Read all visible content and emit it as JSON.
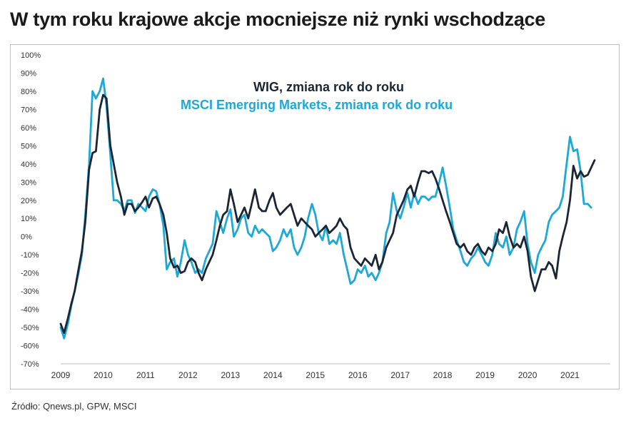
{
  "page": {
    "title": "W tym roku krajowe akcje mocniejsze niż rynki wschodzące",
    "source": "Źródło: Qnews.pl, GPW, MSCI"
  },
  "chart_data": {
    "type": "line",
    "title": "",
    "xlabel": "",
    "ylabel": "",
    "ylim": [
      -70,
      100
    ],
    "xlim": [
      2009,
      2021.95
    ],
    "grid": false,
    "legend_position": "top-center",
    "y_ticks": [
      "100%",
      "90%",
      "80%",
      "70%",
      "60%",
      "50%",
      "40%",
      "30%",
      "20%",
      "10%",
      "0%",
      "-10%",
      "-20%",
      "-30%",
      "-40%",
      "-50%",
      "-60%",
      "-70%"
    ],
    "x_ticks": [
      "2009",
      "2010",
      "2011",
      "2012",
      "2013",
      "2014",
      "2015",
      "2016",
      "2017",
      "2018",
      "2019",
      "2020",
      "2021"
    ],
    "series": [
      {
        "name": "WIG, zmiana rok do roku",
        "color": "#1c2533",
        "points": [
          [
            2009.0,
            -48
          ],
          [
            2009.08,
            -53
          ],
          [
            2009.17,
            -45
          ],
          [
            2009.25,
            -37
          ],
          [
            2009.33,
            -30
          ],
          [
            2009.42,
            -18
          ],
          [
            2009.5,
            -8
          ],
          [
            2009.58,
            8
          ],
          [
            2009.67,
            37
          ],
          [
            2009.75,
            46
          ],
          [
            2009.83,
            47
          ],
          [
            2009.92,
            70
          ],
          [
            2010.0,
            78
          ],
          [
            2010.08,
            76
          ],
          [
            2010.17,
            50
          ],
          [
            2010.25,
            40
          ],
          [
            2010.33,
            30
          ],
          [
            2010.42,
            22
          ],
          [
            2010.5,
            12
          ],
          [
            2010.58,
            18
          ],
          [
            2010.67,
            18
          ],
          [
            2010.75,
            14
          ],
          [
            2010.83,
            16
          ],
          [
            2010.92,
            19
          ],
          [
            2011.0,
            22
          ],
          [
            2011.08,
            16
          ],
          [
            2011.17,
            21
          ],
          [
            2011.25,
            22
          ],
          [
            2011.33,
            18
          ],
          [
            2011.42,
            12
          ],
          [
            2011.5,
            2
          ],
          [
            2011.58,
            -12
          ],
          [
            2011.67,
            -17
          ],
          [
            2011.75,
            -16
          ],
          [
            2011.83,
            -20
          ],
          [
            2011.92,
            -19
          ],
          [
            2012.0,
            -14
          ],
          [
            2012.08,
            -12
          ],
          [
            2012.17,
            -14
          ],
          [
            2012.25,
            -20
          ],
          [
            2012.33,
            -24
          ],
          [
            2012.42,
            -18
          ],
          [
            2012.5,
            -14
          ],
          [
            2012.58,
            -10
          ],
          [
            2012.67,
            -2
          ],
          [
            2012.75,
            6
          ],
          [
            2012.83,
            12
          ],
          [
            2012.92,
            14
          ],
          [
            2013.0,
            26
          ],
          [
            2013.08,
            18
          ],
          [
            2013.17,
            8
          ],
          [
            2013.25,
            12
          ],
          [
            2013.33,
            16
          ],
          [
            2013.42,
            10
          ],
          [
            2013.5,
            18
          ],
          [
            2013.58,
            26
          ],
          [
            2013.67,
            16
          ],
          [
            2013.75,
            14
          ],
          [
            2013.83,
            14
          ],
          [
            2013.92,
            20
          ],
          [
            2014.0,
            24
          ],
          [
            2014.08,
            16
          ],
          [
            2014.17,
            12
          ],
          [
            2014.25,
            14
          ],
          [
            2014.33,
            16
          ],
          [
            2014.42,
            18
          ],
          [
            2014.5,
            12
          ],
          [
            2014.58,
            6
          ],
          [
            2014.67,
            10
          ],
          [
            2014.75,
            8
          ],
          [
            2014.83,
            6
          ],
          [
            2014.92,
            4
          ],
          [
            2015.0,
            0
          ],
          [
            2015.08,
            2
          ],
          [
            2015.17,
            4
          ],
          [
            2015.25,
            6
          ],
          [
            2015.33,
            2
          ],
          [
            2015.42,
            4
          ],
          [
            2015.5,
            6
          ],
          [
            2015.58,
            10
          ],
          [
            2015.67,
            6
          ],
          [
            2015.75,
            4
          ],
          [
            2015.83,
            -6
          ],
          [
            2015.92,
            -12
          ],
          [
            2016.0,
            -14
          ],
          [
            2016.08,
            -16
          ],
          [
            2016.17,
            -12
          ],
          [
            2016.25,
            -14
          ],
          [
            2016.33,
            -16
          ],
          [
            2016.42,
            -10
          ],
          [
            2016.5,
            -18
          ],
          [
            2016.58,
            -14
          ],
          [
            2016.67,
            -6
          ],
          [
            2016.75,
            -2
          ],
          [
            2016.83,
            2
          ],
          [
            2016.92,
            12
          ],
          [
            2017.0,
            16
          ],
          [
            2017.08,
            20
          ],
          [
            2017.17,
            26
          ],
          [
            2017.25,
            28
          ],
          [
            2017.33,
            22
          ],
          [
            2017.42,
            30
          ],
          [
            2017.5,
            36
          ],
          [
            2017.58,
            36
          ],
          [
            2017.67,
            35
          ],
          [
            2017.75,
            36
          ],
          [
            2017.83,
            32
          ],
          [
            2017.92,
            26
          ],
          [
            2018.0,
            20
          ],
          [
            2018.08,
            14
          ],
          [
            2018.17,
            8
          ],
          [
            2018.25,
            2
          ],
          [
            2018.33,
            -4
          ],
          [
            2018.42,
            -6
          ],
          [
            2018.5,
            -4
          ],
          [
            2018.58,
            -8
          ],
          [
            2018.67,
            -10
          ],
          [
            2018.75,
            -6
          ],
          [
            2018.83,
            -4
          ],
          [
            2018.92,
            -8
          ],
          [
            2019.0,
            -10
          ],
          [
            2019.08,
            -6
          ],
          [
            2019.17,
            -8
          ],
          [
            2019.25,
            -4
          ],
          [
            2019.33,
            4
          ],
          [
            2019.42,
            2
          ],
          [
            2019.5,
            8
          ],
          [
            2019.58,
            0
          ],
          [
            2019.67,
            -6
          ],
          [
            2019.75,
            -4
          ],
          [
            2019.83,
            -6
          ],
          [
            2019.92,
            0
          ],
          [
            2020.0,
            -8
          ],
          [
            2020.08,
            -22
          ],
          [
            2020.17,
            -30
          ],
          [
            2020.25,
            -24
          ],
          [
            2020.33,
            -18
          ],
          [
            2020.42,
            -18
          ],
          [
            2020.5,
            -14
          ],
          [
            2020.58,
            -16
          ],
          [
            2020.67,
            -23
          ],
          [
            2020.75,
            -8
          ],
          [
            2020.83,
            0
          ],
          [
            2020.92,
            8
          ],
          [
            2021.0,
            20
          ],
          [
            2021.08,
            39
          ],
          [
            2021.17,
            32
          ],
          [
            2021.25,
            36
          ],
          [
            2021.33,
            33
          ],
          [
            2021.42,
            34
          ],
          [
            2021.5,
            38
          ],
          [
            2021.58,
            42
          ]
        ]
      },
      {
        "name": "MSCI Emerging Markets, zmiana rok do roku",
        "color": "#1da8d6",
        "points": [
          [
            2009.0,
            -50
          ],
          [
            2009.08,
            -56
          ],
          [
            2009.17,
            -48
          ],
          [
            2009.25,
            -38
          ],
          [
            2009.33,
            -30
          ],
          [
            2009.42,
            -20
          ],
          [
            2009.5,
            -10
          ],
          [
            2009.58,
            12
          ],
          [
            2009.67,
            40
          ],
          [
            2009.75,
            80
          ],
          [
            2009.83,
            76
          ],
          [
            2009.92,
            80
          ],
          [
            2010.0,
            87
          ],
          [
            2010.08,
            72
          ],
          [
            2010.17,
            45
          ],
          [
            2010.25,
            20
          ],
          [
            2010.33,
            20
          ],
          [
            2010.42,
            18
          ],
          [
            2010.5,
            14
          ],
          [
            2010.58,
            20
          ],
          [
            2010.67,
            20
          ],
          [
            2010.75,
            13
          ],
          [
            2010.83,
            18
          ],
          [
            2010.92,
            16
          ],
          [
            2011.0,
            14
          ],
          [
            2011.08,
            22
          ],
          [
            2011.17,
            26
          ],
          [
            2011.25,
            25
          ],
          [
            2011.33,
            18
          ],
          [
            2011.42,
            6
          ],
          [
            2011.5,
            -18
          ],
          [
            2011.58,
            -14
          ],
          [
            2011.67,
            -12
          ],
          [
            2011.75,
            -22
          ],
          [
            2011.83,
            -14
          ],
          [
            2011.92,
            -2
          ],
          [
            2012.0,
            -10
          ],
          [
            2012.08,
            -14
          ],
          [
            2012.17,
            -20
          ],
          [
            2012.25,
            -18
          ],
          [
            2012.33,
            -20
          ],
          [
            2012.42,
            -12
          ],
          [
            2012.5,
            -8
          ],
          [
            2012.58,
            -4
          ],
          [
            2012.67,
            14
          ],
          [
            2012.75,
            8
          ],
          [
            2012.83,
            2
          ],
          [
            2012.92,
            10
          ],
          [
            2013.0,
            15
          ],
          [
            2013.08,
            0
          ],
          [
            2013.17,
            4
          ],
          [
            2013.25,
            10
          ],
          [
            2013.33,
            12
          ],
          [
            2013.42,
            2
          ],
          [
            2013.5,
            0
          ],
          [
            2013.58,
            6
          ],
          [
            2013.67,
            2
          ],
          [
            2013.75,
            4
          ],
          [
            2013.83,
            2
          ],
          [
            2013.92,
            0
          ],
          [
            2014.0,
            -8
          ],
          [
            2014.08,
            -6
          ],
          [
            2014.17,
            -2
          ],
          [
            2014.25,
            4
          ],
          [
            2014.33,
            0
          ],
          [
            2014.42,
            4
          ],
          [
            2014.5,
            -6
          ],
          [
            2014.58,
            -10
          ],
          [
            2014.67,
            -6
          ],
          [
            2014.75,
            0
          ],
          [
            2014.83,
            10
          ],
          [
            2014.92,
            18
          ],
          [
            2015.0,
            12
          ],
          [
            2015.08,
            2
          ],
          [
            2015.17,
            -2
          ],
          [
            2015.25,
            6
          ],
          [
            2015.33,
            -4
          ],
          [
            2015.42,
            -2
          ],
          [
            2015.5,
            -4
          ],
          [
            2015.58,
            2
          ],
          [
            2015.67,
            -10
          ],
          [
            2015.75,
            -18
          ],
          [
            2015.83,
            -26
          ],
          [
            2015.92,
            -24
          ],
          [
            2016.0,
            -18
          ],
          [
            2016.08,
            -20
          ],
          [
            2016.17,
            -16
          ],
          [
            2016.25,
            -22
          ],
          [
            2016.33,
            -20
          ],
          [
            2016.42,
            -24
          ],
          [
            2016.5,
            -20
          ],
          [
            2016.58,
            -14
          ],
          [
            2016.67,
            2
          ],
          [
            2016.75,
            8
          ],
          [
            2016.83,
            24
          ],
          [
            2016.92,
            14
          ],
          [
            2017.0,
            10
          ],
          [
            2017.08,
            16
          ],
          [
            2017.17,
            24
          ],
          [
            2017.25,
            16
          ],
          [
            2017.33,
            24
          ],
          [
            2017.42,
            18
          ],
          [
            2017.5,
            22
          ],
          [
            2017.58,
            22
          ],
          [
            2017.67,
            20
          ],
          [
            2017.75,
            22
          ],
          [
            2017.83,
            22
          ],
          [
            2017.92,
            30
          ],
          [
            2018.0,
            38
          ],
          [
            2018.08,
            28
          ],
          [
            2018.17,
            16
          ],
          [
            2018.25,
            4
          ],
          [
            2018.33,
            -2
          ],
          [
            2018.42,
            -8
          ],
          [
            2018.5,
            -14
          ],
          [
            2018.58,
            -16
          ],
          [
            2018.67,
            -12
          ],
          [
            2018.75,
            -10
          ],
          [
            2018.83,
            -6
          ],
          [
            2018.92,
            -10
          ],
          [
            2019.0,
            -14
          ],
          [
            2019.08,
            -16
          ],
          [
            2019.17,
            -10
          ],
          [
            2019.25,
            2
          ],
          [
            2019.33,
            -4
          ],
          [
            2019.42,
            -6
          ],
          [
            2019.5,
            0
          ],
          [
            2019.58,
            -10
          ],
          [
            2019.67,
            -6
          ],
          [
            2019.75,
            4
          ],
          [
            2019.83,
            8
          ],
          [
            2019.92,
            14
          ],
          [
            2020.0,
            -4
          ],
          [
            2020.08,
            -14
          ],
          [
            2020.17,
            -20
          ],
          [
            2020.25,
            -10
          ],
          [
            2020.33,
            -6
          ],
          [
            2020.42,
            -2
          ],
          [
            2020.5,
            8
          ],
          [
            2020.58,
            12
          ],
          [
            2020.67,
            14
          ],
          [
            2020.75,
            16
          ],
          [
            2020.83,
            22
          ],
          [
            2020.92,
            40
          ],
          [
            2021.0,
            55
          ],
          [
            2021.08,
            47
          ],
          [
            2021.17,
            48
          ],
          [
            2021.25,
            36
          ],
          [
            2021.33,
            18
          ],
          [
            2021.42,
            18
          ],
          [
            2021.5,
            16
          ]
        ]
      }
    ]
  }
}
